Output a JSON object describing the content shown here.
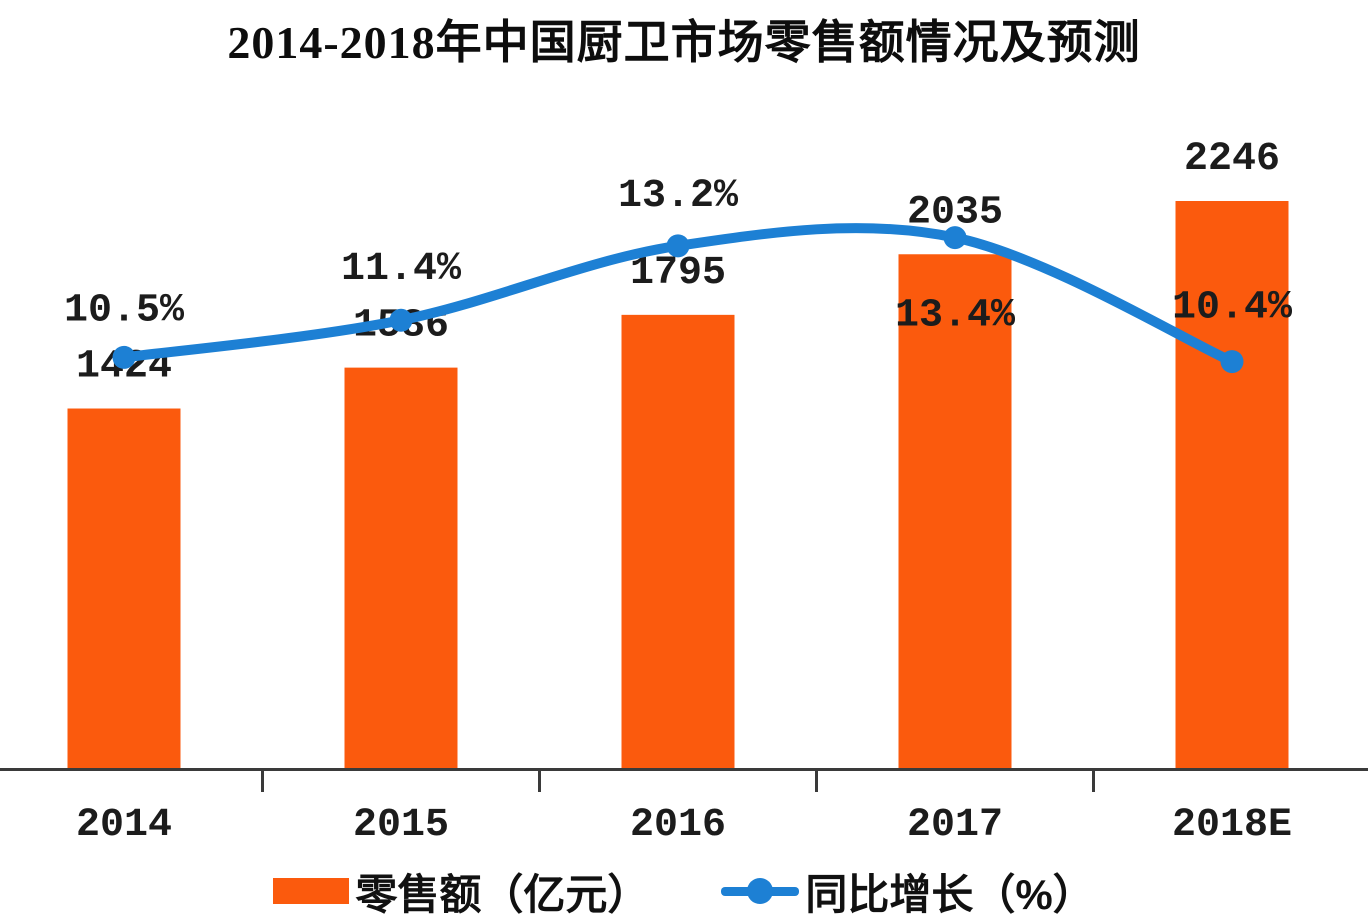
{
  "title": "2014-2018年中国厨卫市场零售额情况及预测",
  "chart_data": {
    "type": "bar",
    "combo": "bar+line",
    "categories": [
      "2014",
      "2015",
      "2016",
      "2017",
      "2018E"
    ],
    "series": [
      {
        "name": "零售额（亿元）",
        "type": "bar",
        "axis": "primary",
        "unit": "亿元",
        "values": [
          1424,
          1586,
          1795,
          2035,
          2246
        ],
        "labels": [
          "1424",
          "1586",
          "1795",
          "2035",
          "2246"
        ],
        "color": "#fb5a0d"
      },
      {
        "name": "同比增长（%）",
        "type": "line",
        "axis": "secondary",
        "unit": "%",
        "values": [
          10.5,
          11.4,
          13.2,
          13.4,
          10.4
        ],
        "labels": [
          "10.5%",
          "11.4%",
          "13.2%",
          "13.4%",
          "10.4%"
        ],
        "color": "#1d80d4"
      }
    ],
    "title": "2014-2018年中国厨卫市场零售额情况及预测",
    "xlabel": "",
    "ylabel": "",
    "grid": false,
    "legend_position": "bottom",
    "axis_color": "#3a3a3a",
    "text_color": "#1c1c1c",
    "background": "#ffffff"
  },
  "legend": {
    "items": [
      {
        "label": "零售额（亿元）",
        "marker": "bar-swatch",
        "color": "#fb5a0d"
      },
      {
        "label": "同比增长（%）",
        "marker": "line-dot",
        "color": "#1d80d4"
      }
    ]
  }
}
